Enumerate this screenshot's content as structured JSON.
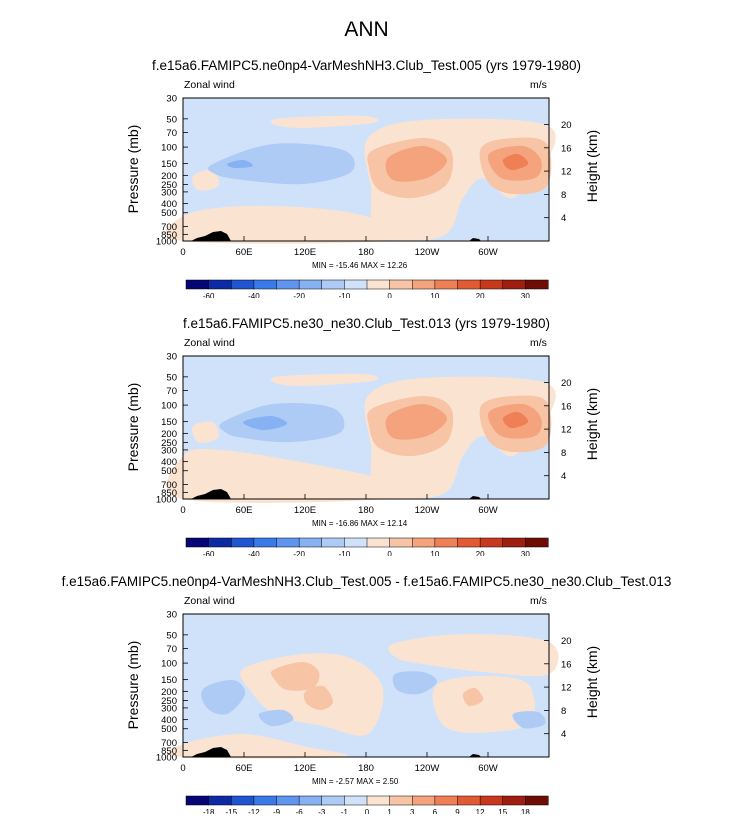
{
  "figure_title": "ANN",
  "chart_data": [
    {
      "type": "heatmap",
      "title": "f.e15a6.FAMIPC5.ne0np4-VarMeshNH3.Club_Test.005 (yrs 1979-1980)",
      "variable_label": "Zonal wind",
      "units": "m/s",
      "ylabel": "Pressure (mb)",
      "ylabel_right": "Height (km)",
      "x_ticks": [
        "0",
        "60E",
        "120E",
        "180",
        "120W",
        "60W"
      ],
      "y_ticks": [
        "30",
        "50",
        "70",
        "100",
        "150",
        "200",
        "250",
        "300",
        "400",
        "500",
        "700",
        "850",
        "1000"
      ],
      "y_right_ticks": [
        "20",
        "16",
        "12",
        "8",
        "4"
      ],
      "stats": "MIN = -15.46   MAX =  12.26",
      "colorbar_ticks": [
        "-60",
        "-40",
        "-20",
        "-10",
        "0",
        "10",
        "20",
        "30"
      ],
      "min": -15.46,
      "max": 12.26
    },
    {
      "type": "heatmap",
      "title": "f.e15a6.FAMIPC5.ne30_ne30.Club_Test.013 (yrs 1979-1980)",
      "variable_label": "Zonal wind",
      "units": "m/s",
      "ylabel": "Pressure (mb)",
      "ylabel_right": "Height (km)",
      "x_ticks": [
        "0",
        "60E",
        "120E",
        "180",
        "120W",
        "60W"
      ],
      "y_ticks": [
        "30",
        "50",
        "70",
        "100",
        "150",
        "200",
        "250",
        "300",
        "400",
        "500",
        "700",
        "850",
        "1000"
      ],
      "y_right_ticks": [
        "20",
        "16",
        "12",
        "8",
        "4"
      ],
      "stats": "MIN = -16.86   MAX =  12.14",
      "colorbar_ticks": [
        "-60",
        "-40",
        "-20",
        "-10",
        "0",
        "10",
        "20",
        "30"
      ],
      "min": -16.86,
      "max": 12.14
    },
    {
      "type": "heatmap",
      "title": "f.e15a6.FAMIPC5.ne0np4-VarMeshNH3.Club_Test.005 - f.e15a6.FAMIPC5.ne30_ne30.Club_Test.013",
      "variable_label": "Zonal wind",
      "units": "m/s",
      "ylabel": "Pressure (mb)",
      "ylabel_right": "Height (km)",
      "x_ticks": [
        "0",
        "60E",
        "120E",
        "180",
        "120W",
        "60W"
      ],
      "y_ticks": [
        "30",
        "50",
        "70",
        "100",
        "150",
        "200",
        "250",
        "300",
        "400",
        "500",
        "700",
        "850",
        "1000"
      ],
      "y_right_ticks": [
        "20",
        "16",
        "12",
        "8",
        "4"
      ],
      "stats": "MIN =  -2.57   MAX =   2.50",
      "colorbar_ticks": [
        "-18",
        "-15",
        "-12",
        "-9",
        "-6",
        "-3",
        "-1",
        "0",
        "1",
        "3",
        "6",
        "9",
        "12",
        "15",
        "18"
      ],
      "min": -2.57,
      "max": 2.5
    }
  ],
  "colorbar_colors": [
    "#050576",
    "#0b2aa4",
    "#1f55d0",
    "#3a7ae8",
    "#5f95ee",
    "#86b1f2",
    "#aecbf6",
    "#d0e2fa",
    "#fbe3d2",
    "#f8c4a6",
    "#f4a37c",
    "#ef8055",
    "#e25a34",
    "#c8381d",
    "#a01e10",
    "#6e0d04"
  ]
}
